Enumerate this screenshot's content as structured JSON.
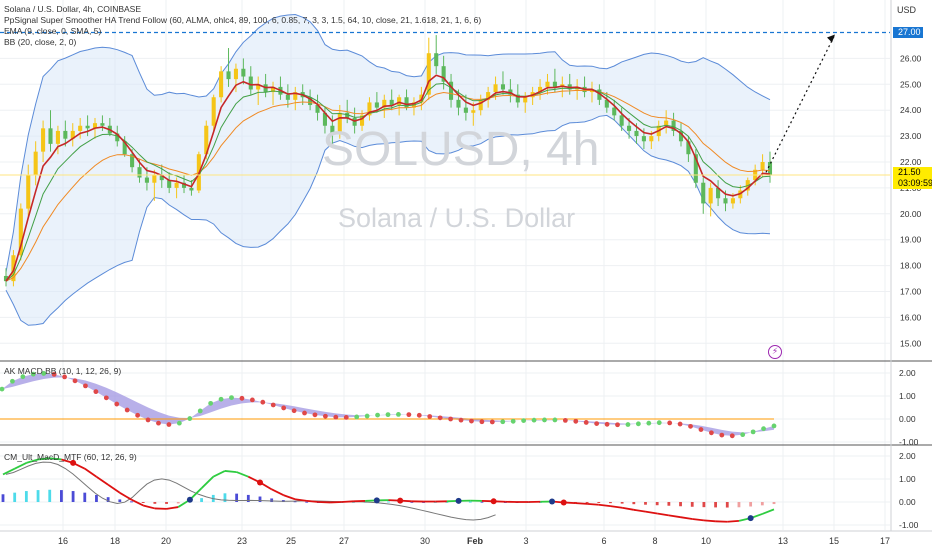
{
  "header": {
    "symbol": "Solana / U.S. Dollar, 4h, COINBASE",
    "indicators": [
      "PpSignal Super Smoother HA Trend Follow (60, ALMA, ohlc4, 89, 100, 6, 0.85, 7, 3, 3, 1.5, 64, 10, close, 21, 1.618, 21, 1, 6, 6)",
      "EMA (9, close, 0, SMA, 5)",
      "BB (20, close, 2, 0)"
    ]
  },
  "watermark": {
    "ticker": "SOLUSD, 4h",
    "name": "Solana / U.S. Dollar"
  },
  "price_axis": {
    "currency": "USD",
    "last_price": "21.50",
    "countdown": "03:09:59",
    "target_price": "27.00",
    "ticks": [
      "26.00",
      "25.00",
      "24.00",
      "23.00",
      "22.00",
      "21.00",
      "20.00",
      "19.00",
      "18.00",
      "17.00",
      "16.00",
      "15.00"
    ]
  },
  "panes": {
    "macd1": {
      "label": "AK MACD BB (10, 1, 12, 26, 9)",
      "ticks": [
        "2.00",
        "1.00",
        "0.00",
        "-1.00"
      ]
    },
    "macd2": {
      "label": "CM_Ult_MacD_MTF (60, 12, 26, 9)",
      "ticks": [
        "2.00",
        "1.00",
        "0.00",
        "-1.00"
      ]
    }
  },
  "time_axis": {
    "labels": [
      "16",
      "18",
      "20",
      "23",
      "25",
      "27",
      "30",
      "Feb",
      "3",
      "6",
      "8",
      "10",
      "13",
      "15",
      "17"
    ]
  },
  "colors": {
    "bull": "#f5c518",
    "bear": "#5cb85c",
    "red_line": "#c62828",
    "green_line": "#43a047",
    "orange_line": "#f08a24",
    "bb": "#5b8bd8",
    "bb_fill": "#d8e8f8",
    "dash": "#1976d2",
    "dot_green": "#66d36e",
    "dot_red": "#e04848",
    "fill_purple": "#9a8fe0",
    "zero_line": "#ff9800"
  },
  "chart_data": [
    {
      "type": "candlestick",
      "title": "Solana / U.S. Dollar, 4h, COINBASE",
      "ylim": [
        14.5,
        27.7
      ],
      "x_labels": [
        "16",
        "18",
        "20",
        "23",
        "25",
        "27",
        "30",
        "Feb",
        "3",
        "6",
        "8",
        "10",
        "13",
        "15",
        "17"
      ],
      "ohlc": [
        [
          17.6,
          17.9,
          17.2,
          17.4
        ],
        [
          17.4,
          18.6,
          17.2,
          18.4
        ],
        [
          18.4,
          20.4,
          18.2,
          20.2
        ],
        [
          20.2,
          21.9,
          19.9,
          21.5
        ],
        [
          21.5,
          22.8,
          21.1,
          22.4
        ],
        [
          22.4,
          23.6,
          22.0,
          23.3
        ],
        [
          23.3,
          24.0,
          22.4,
          22.7
        ],
        [
          22.7,
          23.4,
          22.3,
          23.2
        ],
        [
          23.2,
          23.6,
          22.6,
          22.9
        ],
        [
          22.9,
          23.5,
          22.6,
          23.2
        ],
        [
          23.2,
          23.7,
          22.9,
          23.4
        ],
        [
          23.4,
          23.8,
          23.0,
          23.3
        ],
        [
          23.3,
          23.7,
          22.9,
          23.5
        ],
        [
          23.5,
          23.8,
          23.2,
          23.4
        ],
        [
          23.4,
          23.7,
          23.0,
          23.1
        ],
        [
          23.1,
          23.4,
          22.6,
          22.8
        ],
        [
          22.8,
          23.0,
          22.2,
          22.3
        ],
        [
          22.3,
          22.5,
          21.6,
          21.8
        ],
        [
          21.8,
          22.1,
          21.2,
          21.4
        ],
        [
          21.4,
          21.8,
          20.9,
          21.2
        ],
        [
          21.2,
          21.7,
          20.5,
          21.5
        ],
        [
          21.5,
          21.9,
          21.0,
          21.3
        ],
        [
          21.3,
          21.6,
          20.8,
          21.0
        ],
        [
          21.0,
          21.4,
          20.6,
          21.2
        ],
        [
          21.2,
          21.5,
          20.8,
          21.0
        ],
        [
          21.0,
          21.3,
          20.7,
          20.9
        ],
        [
          20.9,
          22.4,
          20.8,
          22.3
        ],
        [
          22.3,
          23.6,
          22.1,
          23.4
        ],
        [
          23.4,
          24.6,
          23.2,
          24.5
        ],
        [
          24.5,
          25.7,
          24.3,
          25.5
        ],
        [
          25.5,
          26.4,
          24.9,
          25.2
        ],
        [
          25.2,
          25.8,
          24.7,
          25.6
        ],
        [
          25.6,
          26.0,
          25.0,
          25.3
        ],
        [
          25.3,
          25.7,
          24.6,
          24.8
        ],
        [
          24.8,
          25.3,
          24.2,
          25.0
        ],
        [
          25.0,
          25.4,
          24.5,
          24.7
        ],
        [
          24.7,
          25.1,
          24.2,
          24.9
        ],
        [
          24.9,
          25.3,
          24.4,
          24.6
        ],
        [
          24.6,
          25.0,
          24.1,
          24.4
        ],
        [
          24.4,
          24.9,
          24.0,
          24.7
        ],
        [
          24.7,
          25.0,
          24.2,
          24.5
        ],
        [
          24.5,
          24.8,
          24.0,
          24.2
        ],
        [
          24.2,
          24.6,
          23.6,
          23.9
        ],
        [
          23.9,
          24.1,
          23.1,
          23.4
        ],
        [
          23.4,
          23.8,
          22.7,
          23.1
        ],
        [
          23.1,
          24.2,
          22.9,
          23.9
        ],
        [
          23.9,
          24.4,
          23.5,
          23.7
        ],
        [
          23.7,
          24.1,
          23.1,
          23.4
        ],
        [
          23.4,
          24.0,
          23.2,
          23.8
        ],
        [
          23.8,
          24.5,
          23.6,
          24.3
        ],
        [
          24.3,
          24.7,
          23.9,
          24.1
        ],
        [
          24.1,
          24.6,
          23.7,
          24.4
        ],
        [
          24.4,
          24.8,
          24.0,
          24.2
        ],
        [
          24.2,
          24.6,
          23.8,
          24.5
        ],
        [
          24.5,
          24.8,
          24.0,
          24.1
        ],
        [
          24.1,
          24.5,
          23.8,
          24.3
        ],
        [
          24.3,
          24.9,
          24.0,
          24.6
        ],
        [
          24.6,
          26.8,
          24.4,
          26.2
        ],
        [
          26.2,
          26.9,
          25.4,
          25.7
        ],
        [
          25.7,
          26.1,
          24.8,
          25.1
        ],
        [
          25.1,
          25.4,
          24.1,
          24.4
        ],
        [
          24.4,
          24.8,
          23.8,
          24.1
        ],
        [
          24.1,
          24.6,
          23.6,
          23.9
        ],
        [
          23.9,
          24.3,
          23.4,
          24.0
        ],
        [
          24.0,
          24.6,
          23.8,
          24.4
        ],
        [
          24.4,
          24.9,
          24.1,
          24.7
        ],
        [
          24.7,
          25.3,
          24.4,
          25.0
        ],
        [
          25.0,
          25.5,
          24.6,
          24.8
        ],
        [
          24.8,
          25.2,
          24.3,
          24.6
        ],
        [
          24.6,
          25.0,
          24.1,
          24.3
        ],
        [
          24.3,
          24.7,
          23.9,
          24.5
        ],
        [
          24.5,
          24.9,
          24.2,
          24.7
        ],
        [
          24.7,
          25.2,
          24.4,
          24.9
        ],
        [
          24.9,
          25.4,
          24.6,
          25.1
        ],
        [
          25.1,
          25.6,
          24.7,
          24.9
        ],
        [
          24.9,
          25.3,
          24.5,
          25.0
        ],
        [
          25.0,
          25.4,
          24.6,
          24.8
        ],
        [
          24.8,
          25.2,
          24.4,
          24.9
        ],
        [
          24.9,
          25.3,
          24.5,
          24.7
        ],
        [
          24.7,
          25.1,
          24.3,
          24.8
        ],
        [
          24.8,
          25.0,
          24.2,
          24.4
        ],
        [
          24.4,
          24.7,
          23.9,
          24.1
        ],
        [
          24.1,
          24.4,
          23.6,
          23.8
        ],
        [
          23.8,
          24.1,
          23.2,
          23.4
        ],
        [
          23.4,
          23.7,
          22.9,
          23.2
        ],
        [
          23.2,
          23.5,
          22.7,
          23.0
        ],
        [
          23.0,
          23.3,
          22.5,
          22.8
        ],
        [
          22.8,
          23.2,
          22.5,
          23.0
        ],
        [
          23.0,
          23.6,
          22.8,
          23.4
        ],
        [
          23.4,
          24.0,
          23.1,
          23.6
        ],
        [
          23.6,
          23.9,
          23.0,
          23.2
        ],
        [
          23.2,
          23.5,
          22.6,
          22.8
        ],
        [
          22.8,
          23.0,
          22.0,
          22.3
        ],
        [
          22.3,
          22.5,
          21.0,
          21.2
        ],
        [
          21.2,
          21.4,
          20.0,
          20.4
        ],
        [
          20.4,
          21.2,
          19.9,
          21.0
        ],
        [
          21.0,
          21.3,
          20.3,
          20.6
        ],
        [
          20.6,
          20.9,
          20.1,
          20.4
        ],
        [
          20.4,
          20.8,
          20.2,
          20.6
        ],
        [
          20.6,
          21.1,
          20.4,
          20.9
        ],
        [
          20.9,
          21.4,
          20.7,
          21.3
        ],
        [
          21.3,
          21.9,
          21.1,
          21.7
        ],
        [
          21.7,
          22.3,
          21.4,
          22.0
        ],
        [
          22.0,
          22.4,
          21.2,
          21.5
        ]
      ],
      "overlays": [
        "red super-smoother line",
        "green EMA line",
        "orange line",
        "Bollinger Bands with shaded fill"
      ],
      "annotation": {
        "type": "projection",
        "from_price": 21.6,
        "to_price": 27.0,
        "label": "27.00"
      }
    },
    {
      "type": "scatter",
      "title": "AK MACD BB (10, 1, 12, 26, 9)",
      "ylim": [
        -1.2,
        2.2
      ],
      "y_ticks": [
        2.0,
        1.0,
        0.0,
        -1.0
      ],
      "values": [
        1.3,
        1.64,
        1.84,
        1.95,
        1.98,
        1.94,
        1.83,
        1.66,
        1.44,
        1.19,
        0.92,
        0.65,
        0.39,
        0.16,
        -0.04,
        -0.18,
        -0.24,
        -0.18,
        0.02,
        0.35,
        0.68,
        0.86,
        0.93,
        0.9,
        0.83,
        0.73,
        0.61,
        0.48,
        0.36,
        0.26,
        0.18,
        0.12,
        0.08,
        0.07,
        0.09,
        0.13,
        0.17,
        0.19,
        0.2,
        0.19,
        0.16,
        0.11,
        0.05,
        0.0,
        -0.05,
        -0.09,
        -0.12,
        -0.13,
        -0.12,
        -0.1,
        -0.07,
        -0.05,
        -0.04,
        -0.04,
        -0.06,
        -0.1,
        -0.15,
        -0.2,
        -0.23,
        -0.25,
        -0.24,
        -0.21,
        -0.18,
        -0.16,
        -0.17,
        -0.22,
        -0.32,
        -0.46,
        -0.6,
        -0.7,
        -0.73,
        -0.68,
        -0.56,
        -0.42,
        -0.3
      ]
    },
    {
      "type": "bar",
      "title": "CM_Ult_MacD_MTF (60, 12, 26, 9)",
      "ylim": [
        -1.2,
        2.2
      ],
      "y_ticks": [
        2.0,
        1.0,
        0.0,
        -1.0
      ],
      "values": [
        1.2,
        1.45,
        1.7,
        1.85,
        1.9,
        1.85,
        1.7,
        1.45,
        1.1,
        0.75,
        0.4,
        0.1,
        -0.15,
        -0.28,
        -0.3,
        -0.22,
        0.1,
        0.6,
        1.1,
        1.35,
        1.3,
        1.1,
        0.85,
        0.55,
        0.3,
        0.12,
        0.05,
        0.0,
        -0.02,
        0.0,
        0.03,
        0.05,
        0.07,
        0.08,
        0.06,
        0.03,
        0.02,
        0.02,
        0.03,
        0.05,
        0.06,
        0.05,
        0.03,
        0.01,
        0.0,
        0.0,
        0.01,
        0.02,
        -0.02,
        -0.05,
        -0.08,
        -0.12,
        -0.18,
        -0.25,
        -0.34,
        -0.42,
        -0.5,
        -0.58,
        -0.66,
        -0.74,
        -0.8,
        -0.84,
        -0.86,
        -0.82,
        -0.7,
        -0.52,
        -0.32
      ]
    }
  ]
}
